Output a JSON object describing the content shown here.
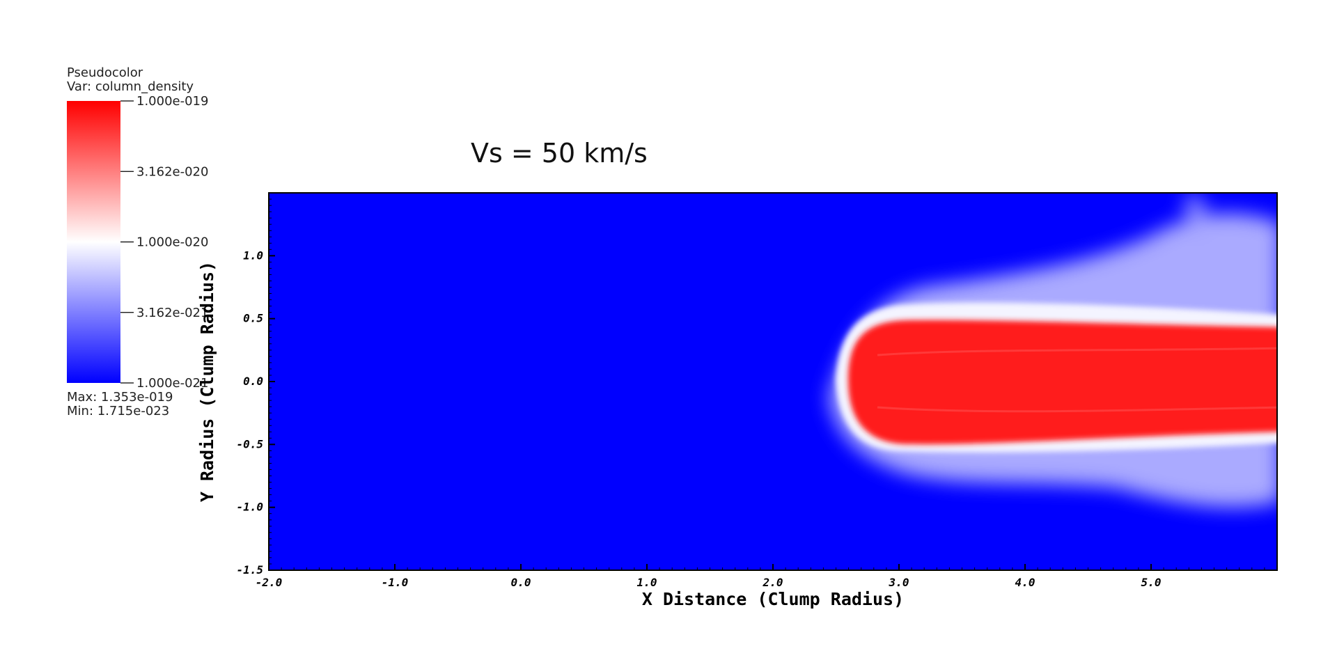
{
  "chart_data": {
    "type": "heatmap",
    "title": "Vs = 50 km/s",
    "xlabel": "X Distance (Clump Radius)",
    "ylabel": "Y Radius (Clump Radius)",
    "xlim": [
      -2.0,
      6.0
    ],
    "ylim": [
      -1.5,
      1.5
    ],
    "x_ticks": [
      "-2.0",
      "-1.0",
      "0.0",
      "1.0",
      "2.0",
      "3.0",
      "4.0",
      "5.0"
    ],
    "y_ticks": [
      "-1.5",
      "-1.0",
      "-0.5",
      "0.0",
      "0.5",
      "1.0"
    ],
    "x_tick_values": [
      -2.0,
      -1.0,
      0.0,
      1.0,
      2.0,
      3.0,
      4.0,
      5.0
    ],
    "y_tick_values": [
      -1.5,
      -1.0,
      -0.5,
      0.0,
      0.5,
      1.0
    ],
    "grid": false,
    "colorbar": {
      "type_label": "Pseudocolor",
      "var_label": "Var: column_density",
      "scale": "log",
      "ticks": [
        "1.000e-019",
        "3.162e-020",
        "1.000e-020",
        "3.162e-021",
        "1.000e-021"
      ],
      "max_label": "Max:  1.353e-019",
      "min_label": "Min:  1.715e-023",
      "colors": {
        "high": "#ff0000",
        "mid": "#ffffff",
        "low": "#0000ff"
      }
    },
    "feature": {
      "description_values": {
        "core_x_start": 2.6,
        "core_x_end": 6.0,
        "core_y_half_width": 0.5,
        "envelope_y_half_width": 1.0
      },
      "core_color": "#ff1010",
      "background_color": "#0000ff"
    }
  }
}
